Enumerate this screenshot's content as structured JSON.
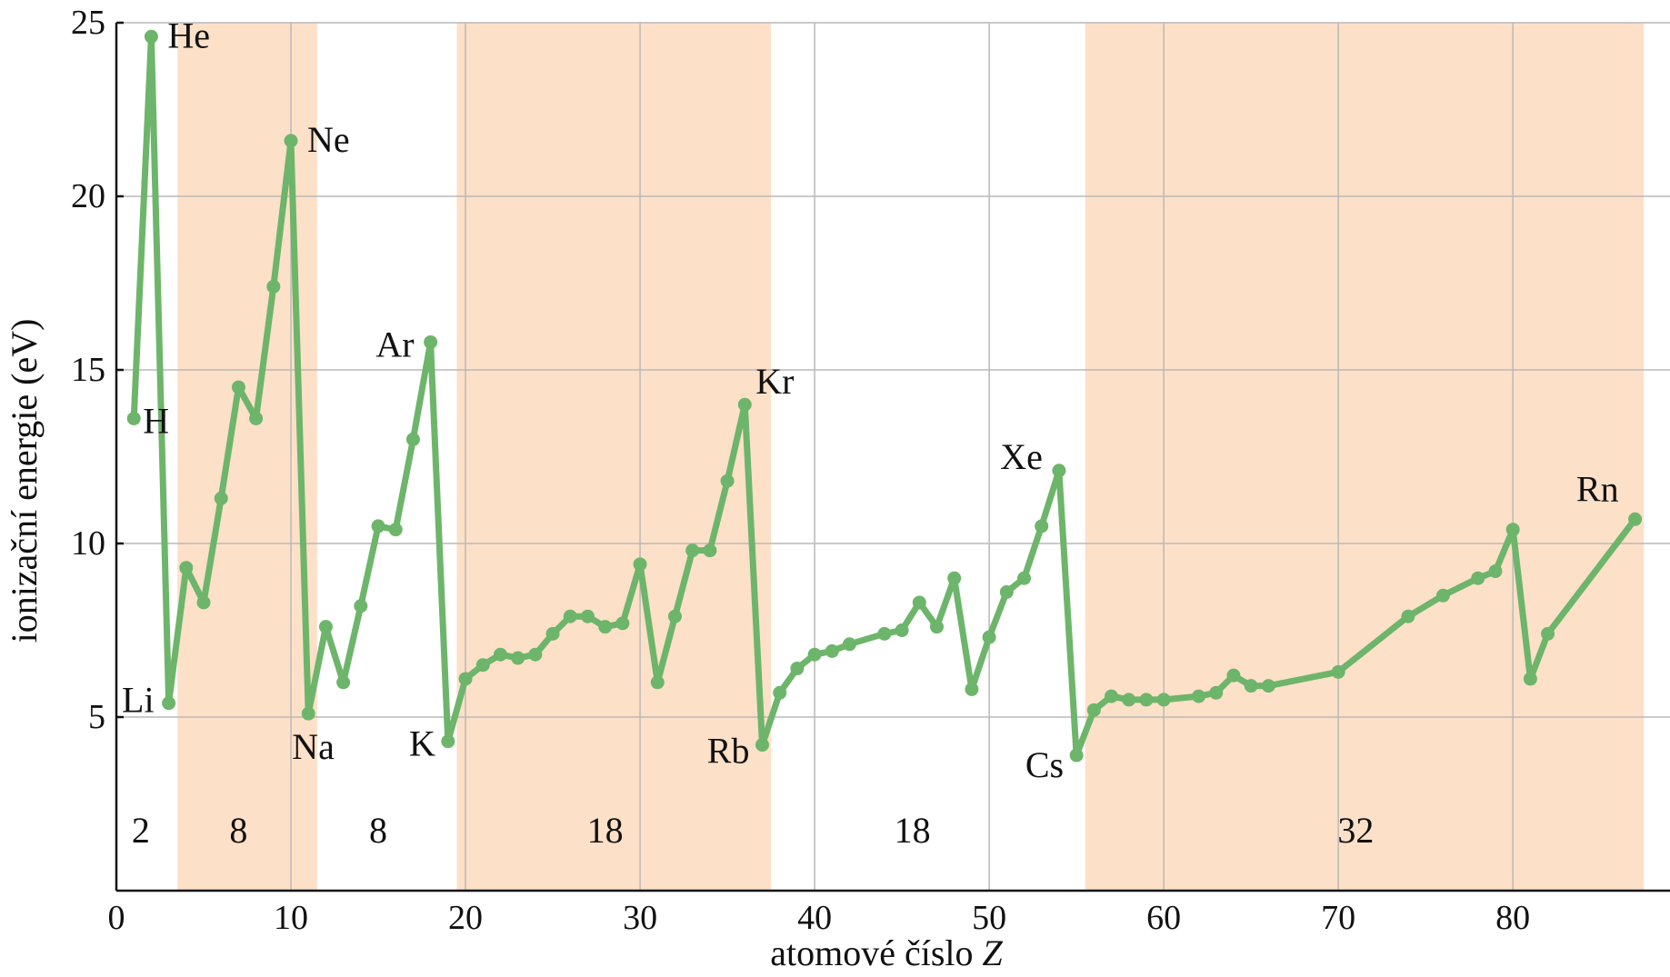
{
  "chart_data": {
    "type": "line",
    "xlabel": "atomové číslo",
    "xlabel_var": "Z",
    "ylabel": "ionizační energie (eV)",
    "xlim": [
      0,
      89
    ],
    "ylim": [
      0,
      25
    ],
    "xticks": [
      0,
      10,
      20,
      30,
      40,
      50,
      60,
      70,
      80
    ],
    "yticks": [
      5,
      10,
      15,
      20,
      25
    ],
    "grid": true,
    "line_color": "#6db56b",
    "band_color": "#fde0c8",
    "bands": [
      [
        3,
        11
      ],
      [
        19,
        37
      ],
      [
        55,
        87
      ]
    ],
    "period_labels": [
      {
        "text": "2",
        "x": 1.4
      },
      {
        "text": "8",
        "x": 7
      },
      {
        "text": "8",
        "x": 15
      },
      {
        "text": "18",
        "x": 28
      },
      {
        "text": "18",
        "x": 45.6
      },
      {
        "text": "32",
        "x": 71
      }
    ],
    "series": [
      {
        "points": [
          [
            1,
            13.6
          ],
          [
            2,
            24.6
          ],
          [
            3,
            5.4
          ],
          [
            4,
            9.3
          ],
          [
            5,
            8.3
          ],
          [
            6,
            11.3
          ],
          [
            7,
            14.5
          ],
          [
            8,
            13.6
          ],
          [
            9,
            17.4
          ],
          [
            10,
            21.6
          ],
          [
            11,
            5.1
          ],
          [
            12,
            7.6
          ],
          [
            13,
            6.0
          ],
          [
            14,
            8.2
          ],
          [
            15,
            10.5
          ],
          [
            16,
            10.4
          ],
          [
            17,
            13.0
          ],
          [
            18,
            15.8
          ],
          [
            19,
            4.3
          ],
          [
            20,
            6.1
          ],
          [
            21,
            6.5
          ],
          [
            22,
            6.8
          ],
          [
            23,
            6.7
          ],
          [
            24,
            6.8
          ],
          [
            25,
            7.4
          ],
          [
            26,
            7.9
          ],
          [
            27,
            7.9
          ],
          [
            28,
            7.6
          ],
          [
            29,
            7.7
          ],
          [
            30,
            9.4
          ],
          [
            31,
            6.0
          ],
          [
            32,
            7.9
          ],
          [
            33,
            9.8
          ],
          [
            34,
            9.8
          ],
          [
            35,
            11.8
          ],
          [
            36,
            14.0
          ],
          [
            37,
            4.2
          ],
          [
            38,
            5.7
          ],
          [
            39,
            6.4
          ],
          [
            40,
            6.8
          ],
          [
            41,
            6.9
          ],
          [
            42,
            7.1
          ],
          [
            44,
            7.4
          ],
          [
            45,
            7.5
          ],
          [
            46,
            8.3
          ],
          [
            47,
            7.6
          ],
          [
            48,
            9.0
          ],
          [
            49,
            5.8
          ],
          [
            50,
            7.3
          ],
          [
            51,
            8.6
          ],
          [
            52,
            9.0
          ],
          [
            53,
            10.5
          ],
          [
            54,
            12.1
          ],
          [
            55,
            3.9
          ],
          [
            56,
            5.2
          ],
          [
            57,
            5.6
          ],
          [
            58,
            5.5
          ],
          [
            59,
            5.5
          ],
          [
            60,
            5.5
          ],
          [
            62,
            5.6
          ],
          [
            63,
            5.7
          ],
          [
            64,
            6.2
          ],
          [
            65,
            5.9
          ],
          [
            66,
            5.9
          ],
          [
            70,
            6.3
          ],
          [
            74,
            7.9
          ],
          [
            76,
            8.5
          ],
          [
            78,
            9.0
          ],
          [
            79,
            9.2
          ],
          [
            80,
            10.4
          ],
          [
            81,
            6.1
          ],
          [
            82,
            7.4
          ],
          [
            87,
            10.7
          ]
        ]
      }
    ],
    "annotations": [
      {
        "text": "H",
        "x": 1,
        "y": 13.6
      },
      {
        "text": "He",
        "x": 2,
        "y": 24.6
      },
      {
        "text": "Li",
        "x": 3,
        "y": 5.4
      },
      {
        "text": "Ne",
        "x": 10,
        "y": 21.6
      },
      {
        "text": "Na",
        "x": 11,
        "y": 5.1
      },
      {
        "text": "Ar",
        "x": 18,
        "y": 15.8
      },
      {
        "text": "K",
        "x": 19,
        "y": 4.3
      },
      {
        "text": "Kr",
        "x": 36,
        "y": 14.0
      },
      {
        "text": "Rb",
        "x": 37,
        "y": 4.2
      },
      {
        "text": "Xe",
        "x": 54,
        "y": 12.1
      },
      {
        "text": "Cs",
        "x": 55,
        "y": 3.9
      },
      {
        "text": "Rn",
        "x": 87,
        "y": 10.7
      }
    ]
  }
}
